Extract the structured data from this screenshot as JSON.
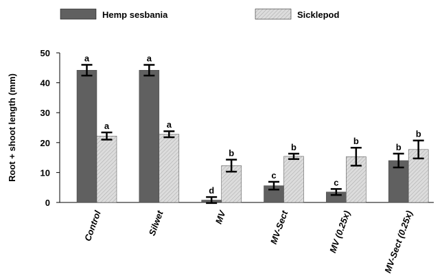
{
  "chart_data": {
    "type": "bar",
    "y_label": "Root + shoot length (mm)",
    "categories": [
      "Control",
      "Silwet",
      "MV",
      "MV-Sect",
      "MV (0.25x)",
      "MV-Sect (0.25x)"
    ],
    "series": [
      {
        "name": "Hemp sesbania",
        "color": "#606060",
        "pattern": "solid",
        "values": [
          44.2,
          44.2,
          0.8,
          5.6,
          3.5,
          14.0
        ],
        "errors": [
          1.8,
          1.8,
          1.0,
          1.3,
          1.0,
          2.3
        ],
        "labels": [
          "a",
          "a",
          "d",
          "c",
          "c",
          "b"
        ]
      },
      {
        "name": "Sicklepod",
        "color": "#dcdcdc",
        "pattern": "hatch",
        "values": [
          22.2,
          22.8,
          12.3,
          15.4,
          15.3,
          17.7
        ],
        "errors": [
          1.2,
          1.0,
          2.0,
          0.9,
          3.0,
          3.0
        ],
        "labels": [
          "a",
          "a",
          "b",
          "b",
          "b",
          "b"
        ]
      }
    ],
    "ylim": [
      0,
      50
    ],
    "yticks": [
      0,
      10,
      20,
      30,
      40,
      50
    ]
  }
}
